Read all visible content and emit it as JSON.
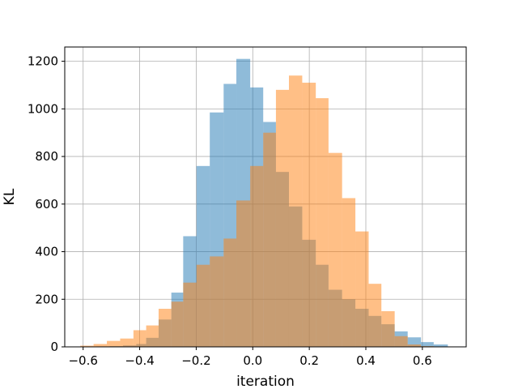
{
  "chart_data": {
    "type": "bar",
    "title": "",
    "xlabel": "iteration",
    "ylabel": "KL",
    "xlim": [
      -0.665,
      0.755
    ],
    "ylim": [
      0,
      1260
    ],
    "xticks": [
      -0.6,
      -0.4,
      -0.2,
      0.0,
      0.2,
      0.4,
      0.6
    ],
    "xtick_labels": [
      "−0.6",
      "−0.4",
      "−0.2",
      "0.0",
      "0.2",
      "0.4",
      "0.6"
    ],
    "yticks": [
      0,
      200,
      400,
      600,
      800,
      1000,
      1200
    ],
    "ytick_labels": [
      "0",
      "200",
      "400",
      "600",
      "800",
      "1000",
      "1200"
    ],
    "grid": true,
    "series": [
      {
        "color": "#1f77b4",
        "opacity": 0.5,
        "bins": [
          [
            -0.6,
            -0.553,
            1
          ],
          [
            -0.553,
            -0.506,
            2
          ],
          [
            -0.506,
            -0.459,
            3
          ],
          [
            -0.459,
            -0.412,
            6
          ],
          [
            -0.412,
            -0.377,
            12
          ],
          [
            -0.377,
            -0.333,
            38
          ],
          [
            -0.333,
            -0.288,
            115
          ],
          [
            -0.288,
            -0.246,
            228
          ],
          [
            -0.246,
            -0.199,
            465
          ],
          [
            -0.199,
            -0.152,
            760
          ],
          [
            -0.152,
            -0.103,
            985
          ],
          [
            -0.103,
            -0.058,
            1105
          ],
          [
            -0.058,
            -0.009,
            1210
          ],
          [
            -0.009,
            0.037,
            1090
          ],
          [
            0.037,
            0.082,
            945
          ],
          [
            0.082,
            0.128,
            735
          ],
          [
            0.128,
            0.175,
            590
          ],
          [
            0.175,
            0.223,
            450
          ],
          [
            0.223,
            0.268,
            345
          ],
          [
            0.268,
            0.316,
            240
          ],
          [
            0.316,
            0.363,
            200
          ],
          [
            0.363,
            0.41,
            160
          ],
          [
            0.41,
            0.455,
            130
          ],
          [
            0.455,
            0.502,
            95
          ],
          [
            0.502,
            0.548,
            65
          ],
          [
            0.548,
            0.595,
            40
          ],
          [
            0.595,
            0.64,
            20
          ],
          [
            0.64,
            0.69,
            10
          ]
        ]
      },
      {
        "color": "#ff7f0e",
        "opacity": 0.5,
        "bins": [
          [
            -0.61,
            -0.563,
            5
          ],
          [
            -0.563,
            -0.516,
            12
          ],
          [
            -0.516,
            -0.469,
            25
          ],
          [
            -0.469,
            -0.422,
            35
          ],
          [
            -0.422,
            -0.377,
            70
          ],
          [
            -0.377,
            -0.333,
            90
          ],
          [
            -0.333,
            -0.288,
            160
          ],
          [
            -0.288,
            -0.246,
            190
          ],
          [
            -0.246,
            -0.199,
            270
          ],
          [
            -0.199,
            -0.152,
            345
          ],
          [
            -0.152,
            -0.103,
            380
          ],
          [
            -0.103,
            -0.058,
            455
          ],
          [
            -0.058,
            -0.009,
            615
          ],
          [
            -0.009,
            0.037,
            760
          ],
          [
            0.037,
            0.082,
            900
          ],
          [
            0.082,
            0.128,
            1080
          ],
          [
            0.128,
            0.175,
            1140
          ],
          [
            0.175,
            0.223,
            1110
          ],
          [
            0.223,
            0.268,
            1045
          ],
          [
            0.268,
            0.316,
            815
          ],
          [
            0.316,
            0.363,
            625
          ],
          [
            0.363,
            0.41,
            485
          ],
          [
            0.41,
            0.455,
            265
          ],
          [
            0.455,
            0.502,
            150
          ],
          [
            0.502,
            0.548,
            45
          ],
          [
            0.548,
            0.595,
            10
          ],
          [
            0.595,
            0.64,
            3
          ]
        ]
      }
    ]
  }
}
